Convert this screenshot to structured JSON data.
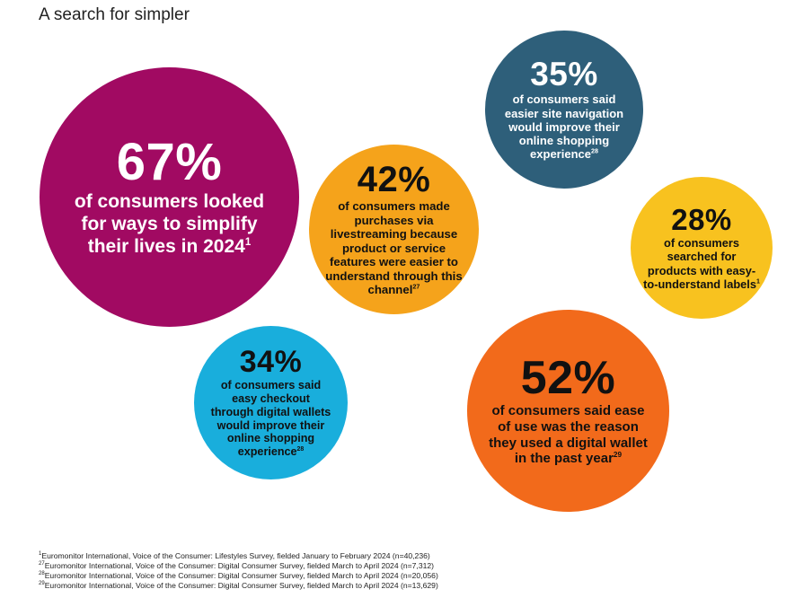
{
  "title": "A search for simpler",
  "bubbles": {
    "b67": {
      "value": "67%",
      "text": "of consumers looked for ways to simplify their lives in 2024",
      "ref": "1",
      "color": "#a10a62"
    },
    "b35": {
      "value": "35%",
      "text": "of consumers said easier site navigation would improve their online shopping experience",
      "ref": "28",
      "color": "#2e5f7a"
    },
    "b42": {
      "value": "42%",
      "text": "of consumers made purchases via livestreaming because product or service features were easier to understand through this channel",
      "ref": "27",
      "color": "#f5a31b"
    },
    "b28": {
      "value": "28%",
      "text": "of consumers searched for products with easy-to-understand labels",
      "ref": "1",
      "color": "#f8c21f"
    },
    "b34": {
      "value": "34%",
      "text": "of consumers said easy checkout through digital wallets would improve their online shopping experience",
      "ref": "28",
      "color": "#19aedc"
    },
    "b52": {
      "value": "52%",
      "text": "of consumers said ease of use was the reason they used a digital wallet in the past year",
      "ref": "29",
      "color": "#f26a1b"
    }
  },
  "footnotes": [
    {
      "ref": "1",
      "text": "Euromonitor International, Voice of the Consumer: Lifestyles Survey, fielded January to February 2024 (n=40,236)"
    },
    {
      "ref": "27",
      "text": "Euromonitor International, Voice of the Consumer: Digital Consumer Survey, fielded March to April 2024 (n=7,312)"
    },
    {
      "ref": "28",
      "text": "Euromonitor International, Voice of the Consumer: Digital Consumer Survey, fielded March to April 2024 (n=20,056)"
    },
    {
      "ref": "29",
      "text": "Euromonitor International, Voice of the Consumer: Digital Consumer Survey, fielded March to April 2024 (n=13,629)"
    }
  ]
}
